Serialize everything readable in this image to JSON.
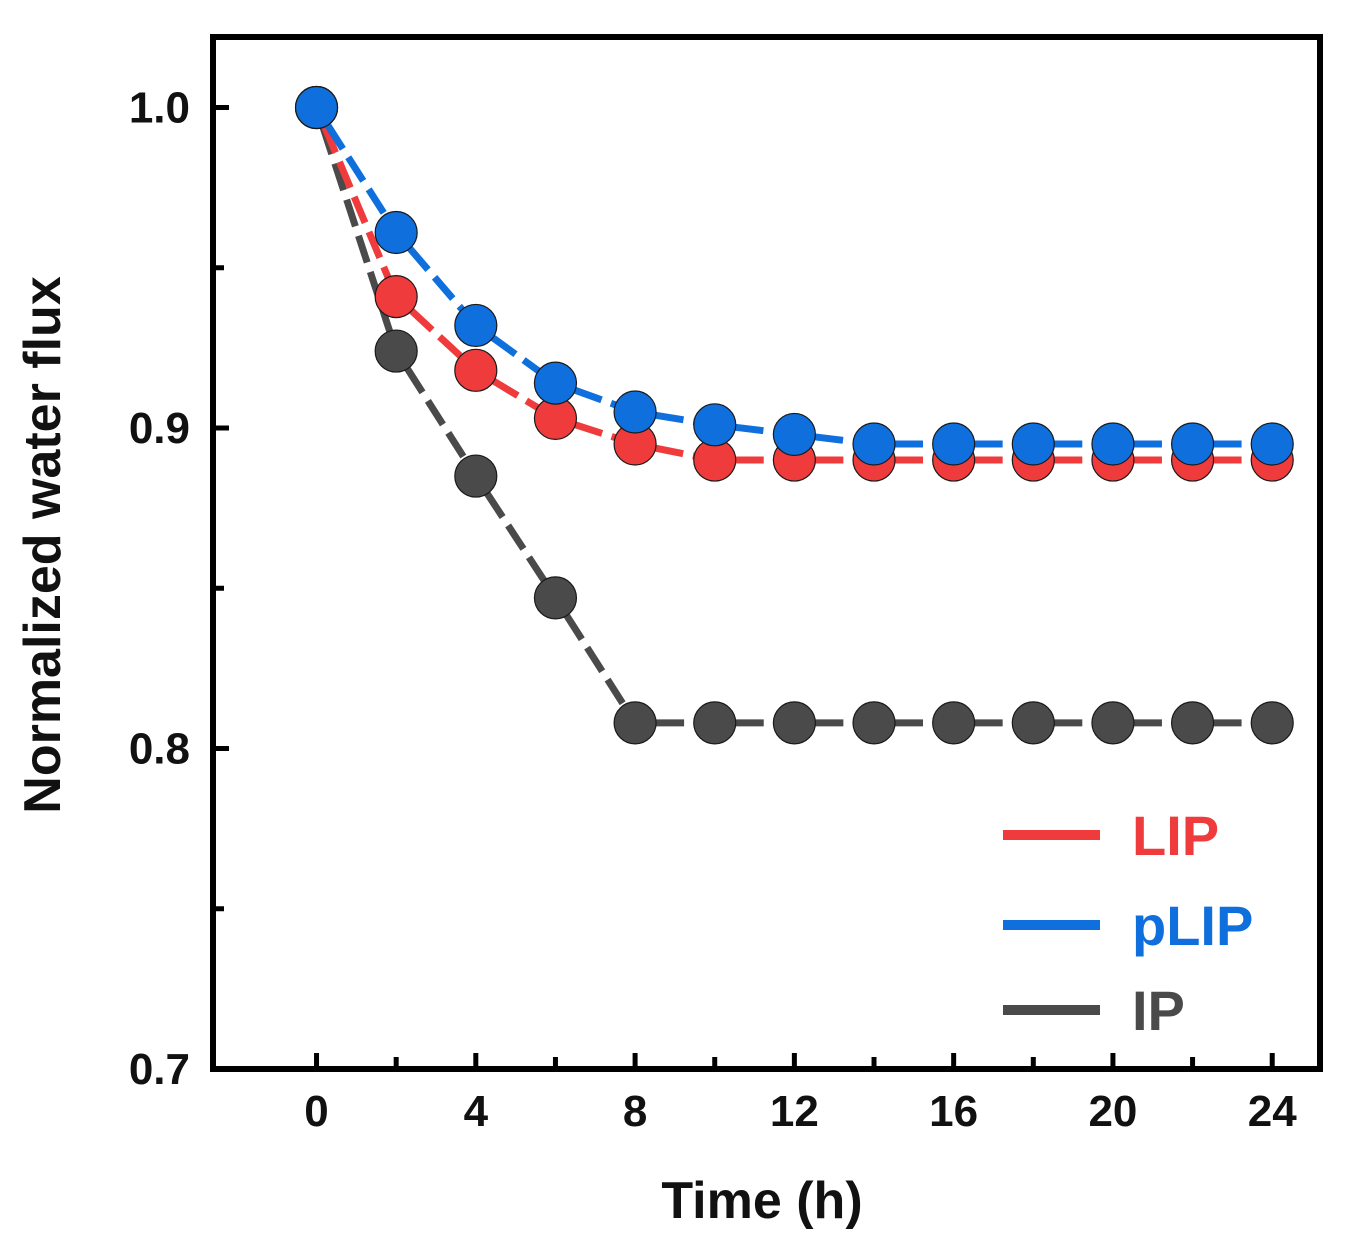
{
  "chart_data": {
    "type": "line",
    "title": "",
    "xlabel": "Time (h)",
    "ylabel": "Normalized water flux",
    "xlim": [
      -2.6,
      25.2
    ],
    "ylim": [
      0.7,
      1.022
    ],
    "x": [
      0,
      2,
      4,
      6,
      8,
      10,
      12,
      14,
      16,
      18,
      20,
      22,
      24
    ],
    "x_ticks": [
      0,
      4,
      8,
      12,
      16,
      20,
      24
    ],
    "x_tick_labels": [
      "0",
      "4",
      "8",
      "12",
      "16",
      "20",
      "24"
    ],
    "x_minor_ticks": [
      2,
      6,
      10,
      14,
      18,
      22
    ],
    "y_ticks": [
      0.7,
      0.8,
      0.9,
      1.0
    ],
    "y_tick_labels": [
      "0.7",
      "0.8",
      "0.9",
      "1.0"
    ],
    "y_minor_ticks": [
      0.75,
      0.85,
      0.95
    ],
    "grid": false,
    "legend_position": "bottom-right",
    "series": [
      {
        "name": "IP",
        "color": "#4a4a4a",
        "values": [
          1.0,
          0.924,
          0.885,
          0.847,
          0.808,
          0.808,
          0.808,
          0.808,
          0.808,
          0.808,
          0.808,
          0.808,
          0.808
        ]
      },
      {
        "name": "LIP",
        "color": "#ef3b3b",
        "values": [
          1.0,
          0.941,
          0.918,
          0.903,
          0.895,
          0.89,
          0.89,
          0.89,
          0.89,
          0.89,
          0.89,
          0.89,
          0.89
        ]
      },
      {
        "name": "pLIP",
        "color": "#0f6fdc",
        "values": [
          1.0,
          0.961,
          0.932,
          0.914,
          0.905,
          0.901,
          0.898,
          0.895,
          0.895,
          0.895,
          0.895,
          0.895,
          0.895
        ]
      }
    ],
    "legend_order": [
      "LIP",
      "pLIP",
      "IP"
    ]
  }
}
